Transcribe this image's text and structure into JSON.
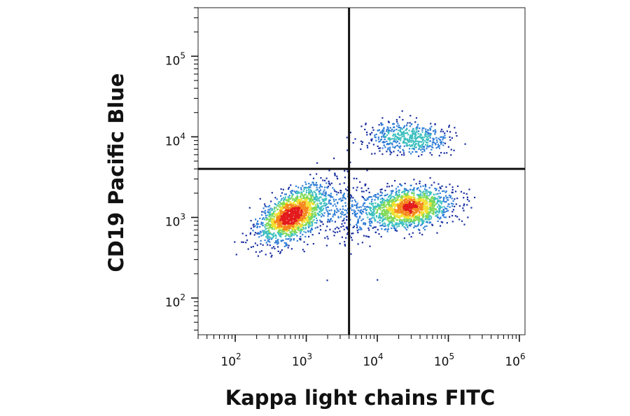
{
  "chart_data": {
    "type": "scatter",
    "title": "",
    "xlabel": "Kappa light chains FITC",
    "ylabel": "CD19 Pacific Blue",
    "x_scale": "log",
    "y_scale": "log",
    "xlim": [
      30,
      1200000
    ],
    "ylim": [
      35,
      400000
    ],
    "x_ticks": [
      {
        "label": "10",
        "exp": "2",
        "value": 100
      },
      {
        "label": "10",
        "exp": "3",
        "value": 1000
      },
      {
        "label": "10",
        "exp": "4",
        "value": 10000
      },
      {
        "label": "10",
        "exp": "5",
        "value": 100000
      },
      {
        "label": "10",
        "exp": "6",
        "value": 1000000
      }
    ],
    "y_ticks": [
      {
        "label": "10",
        "exp": "2",
        "value": 100
      },
      {
        "label": "10",
        "exp": "3",
        "value": 1000
      },
      {
        "label": "10",
        "exp": "4",
        "value": 10000
      },
      {
        "label": "10",
        "exp": "5",
        "value": 100000
      }
    ],
    "gates": {
      "x": 4000,
      "y": 4000
    },
    "grid": false,
    "colormap": [
      "#1a2fa0",
      "#2e7dd6",
      "#3fc0c0",
      "#7ed957",
      "#f2e030",
      "#f5871f",
      "#e31a1c"
    ],
    "populations": [
      {
        "center_x": 650,
        "center_y": 1100,
        "count": 1800,
        "spread_x": 0.24,
        "spread_y": 0.17,
        "correlation": 0.55
      },
      {
        "center_x": 28000,
        "center_y": 1350,
        "count": 1600,
        "spread_x": 0.3,
        "spread_y": 0.12,
        "correlation": 0.15
      },
      {
        "center_x": 25000,
        "center_y": 10000,
        "count": 520,
        "spread_x": 0.3,
        "spread_y": 0.1,
        "correlation": 0.0
      },
      {
        "center_x": 3500,
        "center_y": 1300,
        "count": 220,
        "spread_x": 0.22,
        "spread_y": 0.25,
        "correlation": 0.0
      }
    ]
  }
}
